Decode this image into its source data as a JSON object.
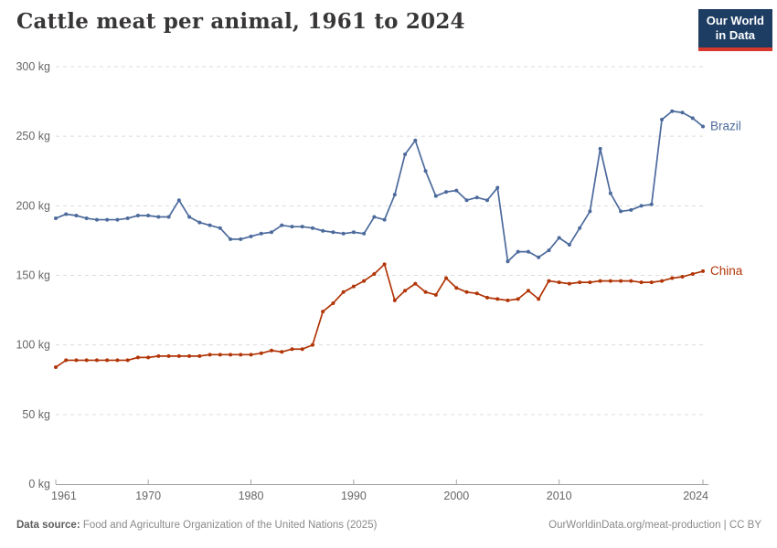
{
  "header": {
    "title": "Cattle meat per animal, 1961 to 2024"
  },
  "logo": {
    "line1": "Our World",
    "line2": "in Data",
    "bg_color": "#1d3d63",
    "accent_color": "#d7382d"
  },
  "chart_data": {
    "type": "line",
    "title": "Cattle meat per animal, 1961 to 2024",
    "unit": "kg",
    "grid": "horizontal-dashed",
    "legend_position": "right-end-labels",
    "ylim": [
      0,
      300
    ],
    "yticks": [
      0,
      50,
      100,
      150,
      200,
      250,
      300
    ],
    "ytick_suffix": " kg",
    "xticks": [
      1961,
      1970,
      1980,
      1990,
      2000,
      2010,
      2024
    ],
    "x": [
      1961,
      1962,
      1963,
      1964,
      1965,
      1966,
      1967,
      1968,
      1969,
      1970,
      1971,
      1972,
      1973,
      1974,
      1975,
      1976,
      1977,
      1978,
      1979,
      1980,
      1981,
      1982,
      1983,
      1984,
      1985,
      1986,
      1987,
      1988,
      1989,
      1990,
      1991,
      1992,
      1993,
      1994,
      1995,
      1996,
      1997,
      1998,
      1999,
      2000,
      2001,
      2002,
      2003,
      2004,
      2005,
      2006,
      2007,
      2008,
      2009,
      2010,
      2011,
      2012,
      2013,
      2014,
      2015,
      2016,
      2017,
      2018,
      2019,
      2020,
      2021,
      2022,
      2023,
      2024
    ],
    "series": [
      {
        "name": "Brazil",
        "color": "#4C6A9C",
        "values": [
          191,
          194,
          193,
          191,
          190,
          190,
          190,
          191,
          193,
          193,
          192,
          192,
          204,
          192,
          188,
          186,
          184,
          176,
          176,
          178,
          180,
          181,
          186,
          185,
          185,
          184,
          182,
          181,
          180,
          181,
          180,
          192,
          190,
          208,
          237,
          247,
          225,
          207,
          210,
          211,
          204,
          206,
          204,
          213,
          160,
          167,
          167,
          163,
          168,
          177,
          172,
          184,
          196,
          241,
          209,
          196,
          197,
          200,
          201,
          262,
          268,
          267,
          263,
          257
        ]
      },
      {
        "name": "China",
        "color": "#B13507",
        "values": [
          84,
          89,
          89,
          89,
          89,
          89,
          89,
          89,
          91,
          91,
          92,
          92,
          92,
          92,
          92,
          93,
          93,
          93,
          93,
          93,
          94,
          96,
          95,
          97,
          97,
          100,
          124,
          130,
          138,
          142,
          146,
          151,
          158,
          132,
          139,
          144,
          138,
          136,
          148,
          141,
          138,
          137,
          134,
          133,
          132,
          133,
          139,
          133,
          146,
          145,
          144,
          145,
          145,
          146,
          146,
          146,
          146,
          145,
          145,
          146,
          148,
          149,
          151,
          153
        ]
      }
    ]
  },
  "footer": {
    "datasource_label": "Data source:",
    "datasource": " Food and Agriculture Organization of the United Nations (2025)",
    "link": "OurWorldinData.org/meat-production | CC BY"
  },
  "colors": {
    "grid": "#dcdcdc",
    "axis_line": "#a5a5a5",
    "tick_text": "#666666",
    "title_text": "#383636"
  }
}
